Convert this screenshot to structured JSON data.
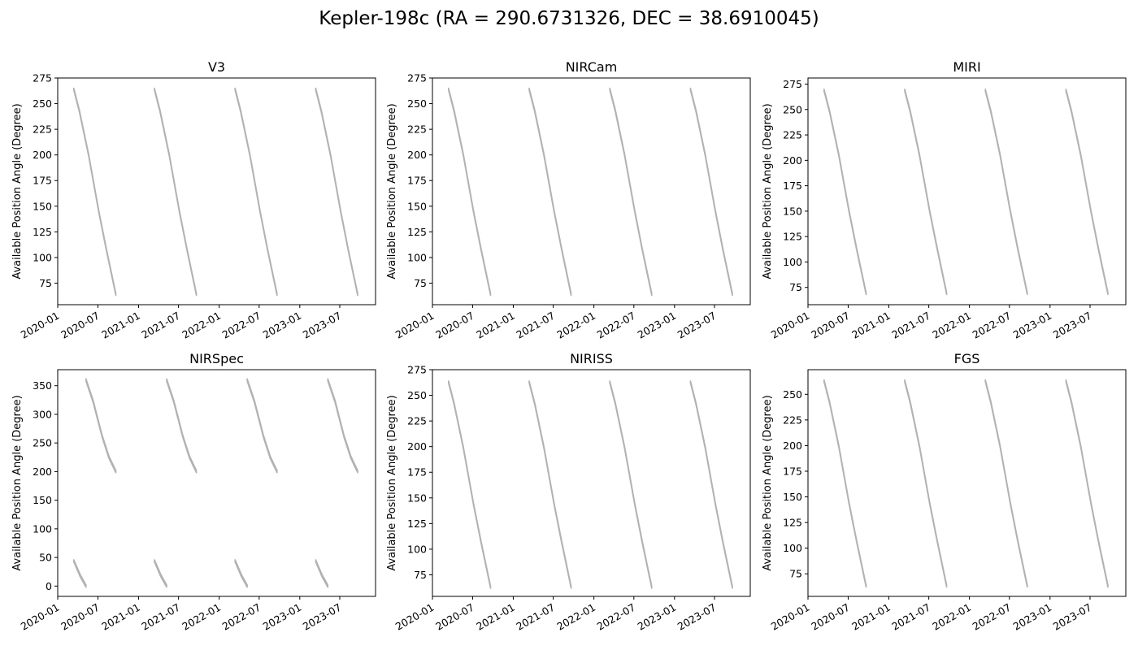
{
  "title": "Kepler-198c (RA = 290.6731326, DEC = 38.6910045)",
  "chart_data": [
    {
      "type": "area",
      "title": "V3",
      "xlabel": "",
      "ylabel": "Available Position Angle (Degree)",
      "x_ticks": [
        "2020-01",
        "2020-07",
        "2021-01",
        "2021-07",
        "2022-01",
        "2022-07",
        "2023-01",
        "2023-07"
      ],
      "xlim": [
        "2020-01-01",
        "2023-12-10"
      ],
      "ylim": [
        54,
        275
      ],
      "y_ticks": [
        75,
        100,
        125,
        150,
        175,
        200,
        225,
        250,
        275
      ],
      "band_width_deg": 2,
      "color": "#b2b2b2",
      "segments": [
        [
          [
            "2020-03-14",
            264
          ],
          [
            "2020-04-08",
            243
          ],
          [
            "2020-05-20",
            200
          ],
          [
            "2020-07-05",
            145
          ],
          [
            "2020-08-08",
            108
          ],
          [
            "2020-09-20",
            64
          ]
        ],
        [
          [
            "2021-03-14",
            264
          ],
          [
            "2021-04-08",
            243
          ],
          [
            "2021-05-20",
            200
          ],
          [
            "2021-07-05",
            145
          ],
          [
            "2021-08-08",
            108
          ],
          [
            "2021-09-20",
            64
          ]
        ],
        [
          [
            "2022-03-14",
            264
          ],
          [
            "2022-04-08",
            243
          ],
          [
            "2022-05-20",
            200
          ],
          [
            "2022-07-05",
            145
          ],
          [
            "2022-08-08",
            108
          ],
          [
            "2022-09-20",
            64
          ]
        ],
        [
          [
            "2023-03-14",
            264
          ],
          [
            "2023-04-08",
            243
          ],
          [
            "2023-05-20",
            200
          ],
          [
            "2023-07-05",
            145
          ],
          [
            "2023-08-08",
            108
          ],
          [
            "2023-09-20",
            64
          ]
        ]
      ]
    },
    {
      "type": "area",
      "title": "NIRCam",
      "xlabel": "",
      "ylabel": "Available Position Angle (Degree)",
      "x_ticks": [
        "2020-01",
        "2020-07",
        "2021-01",
        "2021-07",
        "2022-01",
        "2022-07",
        "2023-01",
        "2023-07"
      ],
      "xlim": [
        "2020-01-01",
        "2023-12-10"
      ],
      "ylim": [
        54,
        275
      ],
      "y_ticks": [
        75,
        100,
        125,
        150,
        175,
        200,
        225,
        250,
        275
      ],
      "band_width_deg": 2,
      "color": "#b2b2b2",
      "segments": [
        [
          [
            "2020-03-14",
            264
          ],
          [
            "2020-04-08",
            243
          ],
          [
            "2020-05-20",
            200
          ],
          [
            "2020-07-05",
            145
          ],
          [
            "2020-08-08",
            108
          ],
          [
            "2020-09-20",
            64
          ]
        ],
        [
          [
            "2021-03-14",
            264
          ],
          [
            "2021-04-08",
            243
          ],
          [
            "2021-05-20",
            200
          ],
          [
            "2021-07-05",
            145
          ],
          [
            "2021-08-08",
            108
          ],
          [
            "2021-09-20",
            64
          ]
        ],
        [
          [
            "2022-03-14",
            264
          ],
          [
            "2022-04-08",
            243
          ],
          [
            "2022-05-20",
            200
          ],
          [
            "2022-07-05",
            145
          ],
          [
            "2022-08-08",
            108
          ],
          [
            "2022-09-20",
            64
          ]
        ],
        [
          [
            "2023-03-14",
            264
          ],
          [
            "2023-04-08",
            243
          ],
          [
            "2023-05-20",
            200
          ],
          [
            "2023-07-05",
            145
          ],
          [
            "2023-08-08",
            108
          ],
          [
            "2023-09-20",
            64
          ]
        ]
      ]
    },
    {
      "type": "area",
      "title": "MIRI",
      "xlabel": "",
      "ylabel": "Available Position Angle (Degree)",
      "x_ticks": [
        "2020-01",
        "2020-07",
        "2021-01",
        "2021-07",
        "2022-01",
        "2022-07",
        "2023-01",
        "2023-07"
      ],
      "xlim": [
        "2020-01-01",
        "2023-12-10"
      ],
      "ylim": [
        58,
        281
      ],
      "y_ticks": [
        75,
        100,
        125,
        150,
        175,
        200,
        225,
        250,
        275
      ],
      "band_width_deg": 2,
      "color": "#b2b2b2",
      "segments": [
        [
          [
            "2020-03-14",
            269
          ],
          [
            "2020-04-08",
            248
          ],
          [
            "2020-05-20",
            205
          ],
          [
            "2020-07-05",
            150
          ],
          [
            "2020-08-08",
            113
          ],
          [
            "2020-09-20",
            69
          ]
        ],
        [
          [
            "2021-03-14",
            269
          ],
          [
            "2021-04-08",
            248
          ],
          [
            "2021-05-20",
            205
          ],
          [
            "2021-07-05",
            150
          ],
          [
            "2021-08-08",
            113
          ],
          [
            "2021-09-20",
            69
          ]
        ],
        [
          [
            "2022-03-14",
            269
          ],
          [
            "2022-04-08",
            248
          ],
          [
            "2022-05-20",
            205
          ],
          [
            "2022-07-05",
            150
          ],
          [
            "2022-08-08",
            113
          ],
          [
            "2022-09-20",
            69
          ]
        ],
        [
          [
            "2023-03-14",
            269
          ],
          [
            "2023-04-08",
            248
          ],
          [
            "2023-05-20",
            205
          ],
          [
            "2023-07-05",
            150
          ],
          [
            "2023-08-08",
            113
          ],
          [
            "2023-09-20",
            69
          ]
        ]
      ]
    },
    {
      "type": "area",
      "title": "NIRSpec",
      "xlabel": "",
      "ylabel": "Available Position Angle (Degree)",
      "x_ticks": [
        "2020-01",
        "2020-07",
        "2021-01",
        "2021-07",
        "2022-01",
        "2022-07",
        "2023-01",
        "2023-07"
      ],
      "xlim": [
        "2020-01-01",
        "2023-12-10"
      ],
      "ylim": [
        -18,
        378
      ],
      "y_ticks": [
        0,
        50,
        100,
        150,
        200,
        250,
        300,
        350
      ],
      "band_width_deg": 4,
      "color": "#b2b2b2",
      "segments": [
        [
          [
            "2020-03-14",
            44
          ],
          [
            "2020-04-12",
            18
          ],
          [
            "2020-05-08",
            0
          ]
        ],
        [
          [
            "2020-05-08",
            360
          ],
          [
            "2020-06-10",
            322
          ],
          [
            "2020-07-20",
            262
          ],
          [
            "2020-08-20",
            225
          ],
          [
            "2020-09-20",
            200
          ]
        ],
        [
          [
            "2021-03-14",
            44
          ],
          [
            "2021-04-12",
            18
          ],
          [
            "2021-05-08",
            0
          ]
        ],
        [
          [
            "2021-05-08",
            360
          ],
          [
            "2021-06-10",
            322
          ],
          [
            "2021-07-20",
            262
          ],
          [
            "2021-08-20",
            225
          ],
          [
            "2021-09-20",
            200
          ]
        ],
        [
          [
            "2022-03-14",
            44
          ],
          [
            "2022-04-12",
            18
          ],
          [
            "2022-05-08",
            0
          ]
        ],
        [
          [
            "2022-05-08",
            360
          ],
          [
            "2022-06-10",
            322
          ],
          [
            "2022-07-20",
            262
          ],
          [
            "2022-08-20",
            225
          ],
          [
            "2022-09-20",
            200
          ]
        ],
        [
          [
            "2023-03-14",
            44
          ],
          [
            "2023-04-12",
            18
          ],
          [
            "2023-05-08",
            0
          ]
        ],
        [
          [
            "2023-05-08",
            360
          ],
          [
            "2023-06-10",
            322
          ],
          [
            "2023-07-20",
            262
          ],
          [
            "2023-08-20",
            225
          ],
          [
            "2023-09-20",
            200
          ]
        ]
      ]
    },
    {
      "type": "area",
      "title": "NIRISS",
      "xlabel": "",
      "ylabel": "Available Position Angle (Degree)",
      "x_ticks": [
        "2020-01",
        "2020-07",
        "2021-01",
        "2021-07",
        "2022-01",
        "2022-07",
        "2023-01",
        "2023-07"
      ],
      "xlim": [
        "2020-01-01",
        "2023-12-10"
      ],
      "ylim": [
        54,
        275
      ],
      "y_ticks": [
        75,
        100,
        125,
        150,
        175,
        200,
        225,
        250,
        275
      ],
      "band_width_deg": 2,
      "color": "#b2b2b2",
      "segments": [
        [
          [
            "2020-03-14",
            263
          ],
          [
            "2020-04-08",
            242
          ],
          [
            "2020-05-20",
            199
          ],
          [
            "2020-07-05",
            144
          ],
          [
            "2020-08-08",
            107
          ],
          [
            "2020-09-20",
            63
          ]
        ],
        [
          [
            "2021-03-14",
            263
          ],
          [
            "2021-04-08",
            242
          ],
          [
            "2021-05-20",
            199
          ],
          [
            "2021-07-05",
            144
          ],
          [
            "2021-08-08",
            107
          ],
          [
            "2021-09-20",
            63
          ]
        ],
        [
          [
            "2022-03-14",
            263
          ],
          [
            "2022-04-08",
            242
          ],
          [
            "2022-05-20",
            199
          ],
          [
            "2022-07-05",
            144
          ],
          [
            "2022-08-08",
            107
          ],
          [
            "2022-09-20",
            63
          ]
        ],
        [
          [
            "2023-03-14",
            263
          ],
          [
            "2023-04-08",
            242
          ],
          [
            "2023-05-20",
            199
          ],
          [
            "2023-07-05",
            144
          ],
          [
            "2023-08-08",
            107
          ],
          [
            "2023-09-20",
            63
          ]
        ]
      ]
    },
    {
      "type": "area",
      "title": "FGS",
      "xlabel": "",
      "ylabel": "Available Position Angle (Degree)",
      "x_ticks": [
        "2020-01",
        "2020-07",
        "2021-01",
        "2021-07",
        "2022-01",
        "2022-07",
        "2023-01",
        "2023-07"
      ],
      "xlim": [
        "2020-01-01",
        "2023-12-10"
      ],
      "ylim": [
        53,
        274
      ],
      "y_ticks": [
        75,
        100,
        125,
        150,
        175,
        200,
        225,
        250
      ],
      "band_width_deg": 2,
      "color": "#b2b2b2",
      "segments": [
        [
          [
            "2020-03-14",
            263
          ],
          [
            "2020-04-08",
            242
          ],
          [
            "2020-05-20",
            199
          ],
          [
            "2020-07-05",
            144
          ],
          [
            "2020-08-08",
            107
          ],
          [
            "2020-09-20",
            63
          ]
        ],
        [
          [
            "2021-03-14",
            263
          ],
          [
            "2021-04-08",
            242
          ],
          [
            "2021-05-20",
            199
          ],
          [
            "2021-07-05",
            144
          ],
          [
            "2021-08-08",
            107
          ],
          [
            "2021-09-20",
            63
          ]
        ],
        [
          [
            "2022-03-14",
            263
          ],
          [
            "2022-04-08",
            242
          ],
          [
            "2022-05-20",
            199
          ],
          [
            "2022-07-05",
            144
          ],
          [
            "2022-08-08",
            107
          ],
          [
            "2022-09-20",
            63
          ]
        ],
        [
          [
            "2023-03-14",
            263
          ],
          [
            "2023-04-08",
            242
          ],
          [
            "2023-05-20",
            199
          ],
          [
            "2023-07-05",
            144
          ],
          [
            "2023-08-08",
            107
          ],
          [
            "2023-09-20",
            63
          ]
        ]
      ]
    }
  ]
}
